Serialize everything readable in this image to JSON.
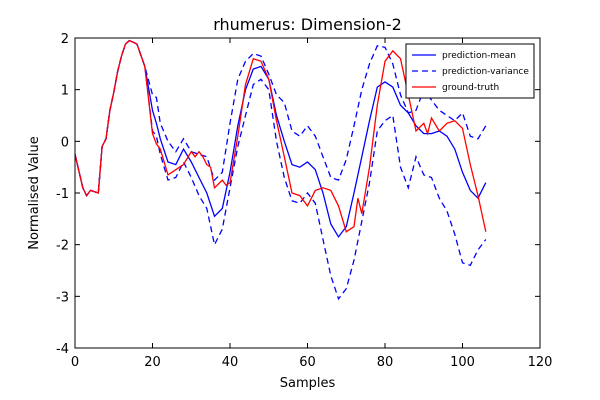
{
  "chart_data": {
    "type": "line",
    "title": "rhumerus: Dimension-2",
    "xlabel": "Samples",
    "ylabel": "Normalised Value",
    "xlim": [
      0,
      120
    ],
    "ylim": [
      -4,
      2
    ],
    "xticks": [
      0,
      20,
      40,
      60,
      80,
      100,
      120
    ],
    "yticks": [
      -4,
      -3,
      -2,
      -1,
      0,
      1,
      2
    ],
    "grid": false,
    "legend_position": "top-right",
    "series": [
      {
        "name": "prediction-mean",
        "color": "#0000ff",
        "linestyle": "solid",
        "x": [
          0,
          2,
          3,
          4,
          6,
          7,
          8,
          9,
          10,
          11,
          12,
          13,
          14,
          15,
          16,
          18,
          20,
          21,
          22,
          24,
          26,
          28,
          30,
          32,
          34,
          36,
          38,
          40,
          42,
          44,
          46,
          48,
          50,
          52,
          54,
          56,
          58,
          60,
          62,
          64,
          66,
          68,
          70,
          72,
          74,
          76,
          78,
          80,
          82,
          84,
          86,
          88,
          90,
          92,
          94,
          96,
          98,
          100,
          102,
          104,
          106
        ],
        "y": [
          -0.25,
          -0.9,
          -1.05,
          -0.95,
          -1.0,
          -0.1,
          0.05,
          0.6,
          0.95,
          1.35,
          1.65,
          1.88,
          1.95,
          1.92,
          1.88,
          1.45,
          0.6,
          0.35,
          0.05,
          -0.4,
          -0.45,
          -0.15,
          -0.4,
          -0.7,
          -1.0,
          -1.45,
          -1.3,
          -0.6,
          0.3,
          1.0,
          1.4,
          1.45,
          1.2,
          0.5,
          0.0,
          -0.45,
          -0.5,
          -0.4,
          -0.55,
          -1.0,
          -1.6,
          -1.85,
          -1.65,
          -1.0,
          -0.3,
          0.4,
          1.05,
          1.15,
          1.05,
          0.7,
          0.55,
          0.3,
          0.15,
          0.15,
          0.2,
          0.1,
          -0.15,
          -0.6,
          -0.95,
          -1.1,
          -0.8
        ]
      },
      {
        "name": "prediction-variance",
        "color": "#0000ff",
        "linestyle": "dashed",
        "x": [
          0,
          2,
          3,
          4,
          6,
          7,
          8,
          9,
          10,
          11,
          12,
          13,
          14,
          15,
          16,
          18,
          20,
          21,
          22,
          24,
          26,
          28,
          30,
          32,
          34,
          36,
          38,
          40,
          42,
          44,
          46,
          48,
          50,
          52,
          54,
          56,
          58,
          60,
          62,
          64,
          66,
          68,
          70,
          72,
          74,
          76,
          78,
          80,
          82,
          84,
          86,
          88,
          90,
          92,
          94,
          96,
          98,
          100,
          102,
          104,
          106
        ],
        "y": [
          -0.25,
          -0.9,
          -1.05,
          -0.95,
          -1.0,
          -0.1,
          0.05,
          0.6,
          0.95,
          1.35,
          1.65,
          1.88,
          1.95,
          1.92,
          1.88,
          1.45,
          0.9,
          0.85,
          0.35,
          0.0,
          -0.2,
          0.05,
          -0.2,
          -0.25,
          -0.3,
          -0.75,
          -0.6,
          0.35,
          1.2,
          1.55,
          1.7,
          1.65,
          1.3,
          0.9,
          0.75,
          0.2,
          0.1,
          0.3,
          0.1,
          -0.3,
          -0.7,
          -0.75,
          -0.35,
          0.3,
          1.0,
          1.5,
          1.85,
          1.82,
          1.5,
          0.9,
          0.55,
          0.6,
          1.0,
          0.8,
          0.6,
          0.5,
          0.4,
          0.55,
          0.1,
          0.05,
          0.3
        ]
      },
      {
        "name": "prediction-variance",
        "color": "#0000ff",
        "linestyle": "dashed",
        "x": [
          0,
          2,
          3,
          4,
          6,
          7,
          8,
          9,
          10,
          11,
          12,
          13,
          14,
          15,
          16,
          18,
          20,
          21,
          22,
          24,
          26,
          28,
          30,
          32,
          34,
          36,
          38,
          40,
          42,
          44,
          46,
          48,
          50,
          52,
          54,
          56,
          58,
          60,
          62,
          64,
          66,
          68,
          70,
          72,
          74,
          76,
          78,
          80,
          82,
          84,
          86,
          88,
          90,
          92,
          94,
          96,
          98,
          100,
          102,
          104,
          106
        ],
        "y": [
          -0.25,
          -0.9,
          -1.05,
          -0.95,
          -1.0,
          -0.1,
          0.05,
          0.6,
          0.95,
          1.35,
          1.65,
          1.88,
          1.95,
          1.92,
          1.88,
          1.45,
          0.2,
          0.1,
          -0.25,
          -0.75,
          -0.7,
          -0.4,
          -0.7,
          -1.05,
          -1.3,
          -2.0,
          -1.7,
          -0.9,
          -0.1,
          0.5,
          1.1,
          1.2,
          1.0,
          0.0,
          -0.7,
          -1.15,
          -1.2,
          -1.0,
          -1.2,
          -1.9,
          -2.6,
          -3.05,
          -2.85,
          -2.3,
          -1.55,
          -0.8,
          0.2,
          0.4,
          0.5,
          -0.5,
          -0.9,
          -0.3,
          -0.65,
          -0.7,
          -1.1,
          -1.35,
          -1.8,
          -2.35,
          -2.4,
          -2.1,
          -1.9
        ]
      },
      {
        "name": "ground-truth",
        "color": "#ff0000",
        "linestyle": "solid",
        "x": [
          0,
          2,
          3,
          4,
          6,
          7,
          8,
          9,
          10,
          11,
          12,
          13,
          14,
          15,
          16,
          18,
          20,
          21,
          22,
          24,
          26,
          28,
          30,
          31,
          32,
          33,
          34,
          35,
          36,
          38,
          39,
          40,
          42,
          44,
          46,
          48,
          50,
          52,
          54,
          56,
          58,
          60,
          62,
          64,
          66,
          68,
          70,
          72,
          73,
          74,
          76,
          78,
          80,
          82,
          84,
          86,
          88,
          90,
          91,
          92,
          94,
          96,
          98,
          100,
          102,
          104,
          106
        ],
        "y": [
          -0.25,
          -0.9,
          -1.05,
          -0.95,
          -1.0,
          -0.1,
          0.05,
          0.6,
          0.95,
          1.35,
          1.65,
          1.88,
          1.95,
          1.92,
          1.88,
          1.45,
          0.15,
          -0.05,
          -0.15,
          -0.65,
          -0.55,
          -0.45,
          -0.2,
          -0.3,
          -0.2,
          -0.3,
          -0.45,
          -0.5,
          -0.9,
          -0.75,
          -0.85,
          -0.8,
          0.1,
          1.1,
          1.6,
          1.55,
          1.2,
          0.4,
          -0.3,
          -1.0,
          -1.05,
          -1.25,
          -0.95,
          -0.9,
          -0.95,
          -1.25,
          -1.75,
          -1.65,
          -1.1,
          -1.4,
          -0.5,
          0.7,
          1.55,
          1.75,
          1.6,
          0.9,
          0.2,
          0.35,
          0.15,
          0.45,
          0.2,
          0.35,
          0.4,
          0.25,
          -0.45,
          -1.05,
          -1.75
        ]
      }
    ]
  }
}
